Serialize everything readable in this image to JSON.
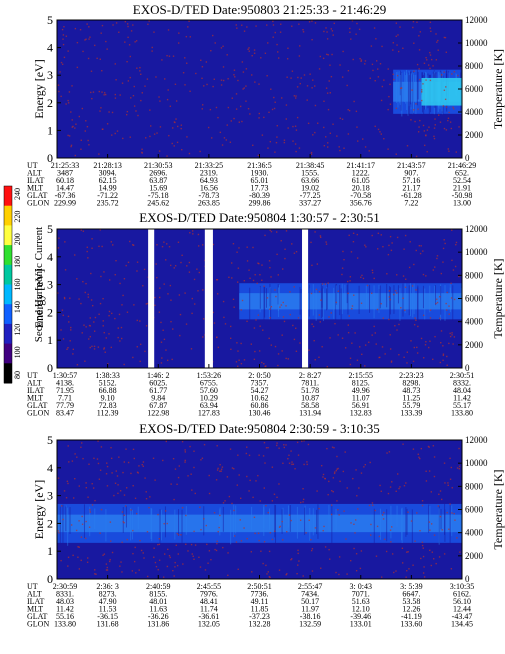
{
  "colors": {
    "background": "#1818a0",
    "band": "#1a55e8",
    "band_core": "#2a7ef0",
    "hot": "#2fc8f0",
    "speckle": "#b03030",
    "gap": "#ffffff"
  },
  "colorbar": {
    "label": "Second Harmonic Current",
    "ticks": [
      "240",
      "220",
      "200",
      "180",
      "160",
      "140",
      "120",
      "100",
      "80"
    ],
    "colors": [
      "#ff1010",
      "#ffd000",
      "#ffff40",
      "#30e030",
      "#00c8a0",
      "#00b8ff",
      "#1060ff",
      "#2020c0",
      "#400080",
      "#000000"
    ]
  },
  "chart_data": [
    {
      "type": "heatmap",
      "title": "EXOS-D/TED   Date:950803  21:25:33 - 21:46:29",
      "ylabel": "Energy [eV]",
      "y2label": "Temperature [K]",
      "ylim": [
        0,
        5
      ],
      "y2lim": [
        0,
        12000
      ],
      "yticks": [
        "0",
        "1",
        "2",
        "3",
        "4",
        "5"
      ],
      "y2ticks": [
        "0",
        "2000",
        "4000",
        "6000",
        "8000",
        "10000",
        "12000"
      ],
      "band": {
        "x_start": 0.83,
        "center_eV": 2.4,
        "width_eV": 1.6
      },
      "gaps": [],
      "row_labels": [
        "UT",
        "ALT",
        "ILAT",
        "MLT",
        "GLAT",
        "GLON"
      ],
      "columns": [
        [
          "21:25:33",
          "3487",
          "60.18",
          "14.47",
          "-67.36",
          "229.99"
        ],
        [
          "21:28:13",
          "3094.",
          "62.15",
          "14.99",
          "-71.22",
          "235.72"
        ],
        [
          "21:30:53",
          "2696.",
          "63.87",
          "15.69",
          "-75.18",
          "245.62"
        ],
        [
          "21:33:25",
          "2319.",
          "64.93",
          "16.56",
          "-78.73",
          "263.85"
        ],
        [
          "21:36:5",
          "1930.",
          "65.01",
          "17.73",
          "-80.39",
          "299.86"
        ],
        [
          "21:38:45",
          "1555.",
          "63.66",
          "19.02",
          "-77.25",
          "337.27"
        ],
        [
          "21:41:17",
          "1222.",
          "61.05",
          "20.18",
          "-70.58",
          "356.76"
        ],
        [
          "21:43:57",
          "907.",
          "57.16",
          "21.17",
          "-61.28",
          "7.22"
        ],
        [
          "21:46:29",
          "652.",
          "52.54",
          "21.91",
          "-50.98",
          "13.00"
        ]
      ]
    },
    {
      "type": "heatmap",
      "title": "EXOS-D/TED   Date:950804   1:30:57 - 2:30:51",
      "ylabel": "Energy [eV]",
      "y2label": "Temperature [K]",
      "ylim": [
        0,
        5
      ],
      "y2lim": [
        0,
        12000
      ],
      "yticks": [
        "0",
        "1",
        "2",
        "3",
        "4",
        "5"
      ],
      "y2ticks": [
        "0",
        "2000",
        "4000",
        "6000",
        "8000",
        "10000",
        "12000"
      ],
      "band": {
        "x_start": 0.45,
        "center_eV": 2.4,
        "width_eV": 1.3
      },
      "gaps": [
        [
          0.225,
          0.24
        ],
        [
          0.365,
          0.385
        ],
        [
          0.605,
          0.62
        ]
      ],
      "row_labels": [
        "UT",
        "ALT",
        "ILAT",
        "MLT",
        "GLAT",
        "GLON"
      ],
      "columns": [
        [
          "1:30:57",
          "4138.",
          "71.95",
          "7.71",
          "77.79",
          "83.47"
        ],
        [
          "1:38:33",
          "5152.",
          "66.88",
          "9.10",
          "72.83",
          "112.39"
        ],
        [
          "1:46: 2",
          "6025.",
          "61.77",
          "9.84",
          "67.87",
          "122.98"
        ],
        [
          "1:53:26",
          "6755.",
          "57.60",
          "10.29",
          "63.94",
          "127.83"
        ],
        [
          "2: 0:50",
          "7357.",
          "54.27",
          "10.62",
          "60.86",
          "130.46"
        ],
        [
          "2: 8:27",
          "7811.",
          "51.78",
          "10.87",
          "58.58",
          "131.94"
        ],
        [
          "2:15:55",
          "8125.",
          "49.96",
          "11.07",
          "56.91",
          "132.83"
        ],
        [
          "2:23:23",
          "8298.",
          "48.73",
          "11.25",
          "55.79",
          "133.39"
        ],
        [
          "2:30:51",
          "8332.",
          "48.04",
          "11.42",
          "55.17",
          "133.80"
        ]
      ]
    },
    {
      "type": "heatmap",
      "title": "EXOS-D/TED   Date:950804   2:30:59 - 3:10:35",
      "ylabel": "Energy [eV]",
      "y2label": "Temperature [K]",
      "ylim": [
        0,
        5
      ],
      "y2lim": [
        0,
        12000
      ],
      "yticks": [
        "0",
        "1",
        "2",
        "3",
        "4",
        "5"
      ],
      "y2ticks": [
        "0",
        "2000",
        "4000",
        "6000",
        "8000",
        "10000",
        "12000"
      ],
      "band": {
        "x_start": 0.0,
        "center_eV": 2.0,
        "width_eV": 1.4
      },
      "gaps": [],
      "row_labels": [
        "UT",
        "ALT",
        "ILAT",
        "MLT",
        "GLAT",
        "GLON"
      ],
      "columns": [
        [
          "2:30:59",
          "8331.",
          "48.03",
          "11.42",
          "55.16",
          "133.80"
        ],
        [
          "2:36: 3",
          "8273.",
          "47.90",
          "11.53",
          "-36.15",
          "131.68"
        ],
        [
          "2:40:59",
          "8155.",
          "48.01",
          "11.63",
          "-36.26",
          "131.86"
        ],
        [
          "2:45:55",
          "7976.",
          "48.41",
          "11.74",
          "-36.61",
          "132.05"
        ],
        [
          "2:50:51",
          "7736.",
          "49.11",
          "11.85",
          "-37.23",
          "132.28"
        ],
        [
          "2:55:47",
          "7434.",
          "50.17",
          "11.97",
          "-38.16",
          "132.59"
        ],
        [
          "3: 0:43",
          "7071.",
          "51.63",
          "12.10",
          "-39.46",
          "133.01"
        ],
        [
          "3: 5:39",
          "6647.",
          "53.58",
          "12.26",
          "-41.19",
          "133.60"
        ],
        [
          "3:10:35",
          "6162.",
          "56.10",
          "12.44",
          "-43.47",
          "134.45"
        ]
      ]
    }
  ]
}
